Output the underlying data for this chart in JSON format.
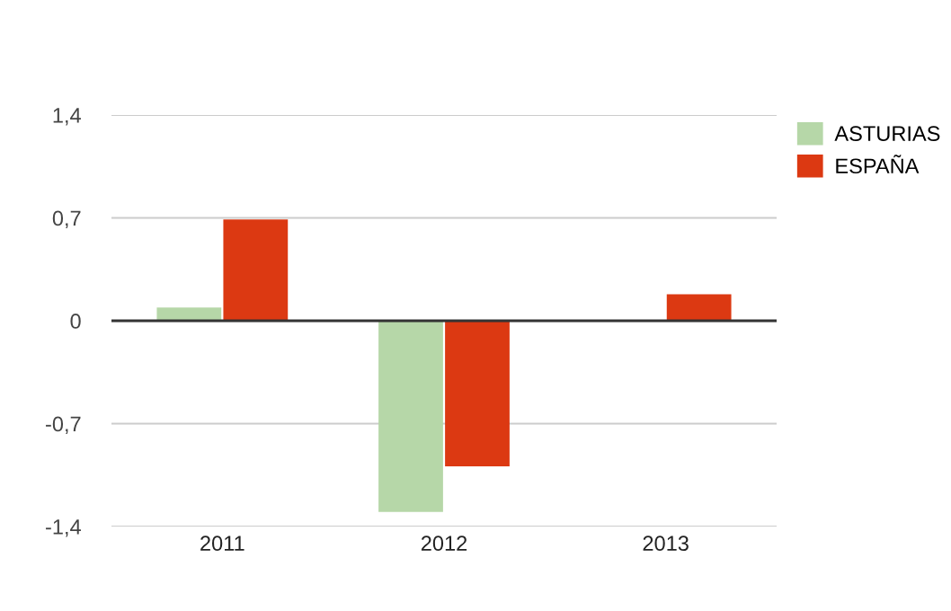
{
  "chart_data": {
    "type": "bar",
    "categories": [
      "2011",
      "2012",
      "2013"
    ],
    "series": [
      {
        "name": "ASTURIAS",
        "color": "#b6d7a8",
        "values": [
          0.09,
          -1.3,
          0
        ]
      },
      {
        "name": "ESPAÑA",
        "color": "#dc3912",
        "values": [
          0.69,
          -0.99,
          0.18
        ]
      }
    ],
    "ylim": [
      -1.4,
      1.4
    ],
    "yticks": [
      {
        "value": -1.4,
        "label": "-1,4"
      },
      {
        "value": -0.7,
        "label": "-0,7"
      },
      0,
      {
        "value": 0.7,
        "label": "0,7"
      },
      {
        "value": 1.4,
        "label": "1,4"
      }
    ],
    "grid": "y",
    "legend": "top right"
  }
}
